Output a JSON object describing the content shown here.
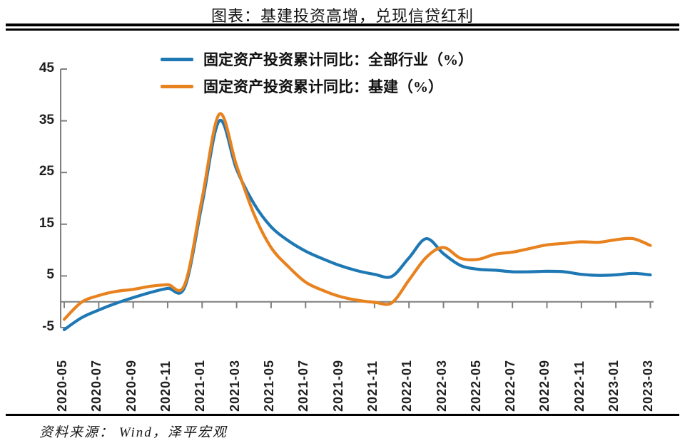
{
  "title": "图表：基建投资高增，兑现信贷红利",
  "source_note": "资料来源：  Wind，泽平宏观",
  "colors": {
    "axis": "#7f7f7f",
    "title_text": "#111111",
    "axis_label_text": "#1f1f1f",
    "series_total": "#1E78B4",
    "series_infra": "#E8821E"
  },
  "chart_data": {
    "type": "line",
    "title": "图表：基建投资高增，兑现信贷红利",
    "xlabel": "",
    "ylabel": "",
    "ylim": [
      -5,
      45
    ],
    "yticks": [
      -5,
      5,
      15,
      25,
      35,
      45
    ],
    "x_tick_every": 2,
    "grid": "zero-baseline-only",
    "legend_position": "top",
    "x": [
      "2020-05",
      "2020-06",
      "2020-07",
      "2020-08",
      "2020-09",
      "2020-10",
      "2020-11",
      "2020-12",
      "2021-01",
      "2021-02",
      "2021-03",
      "2021-04",
      "2021-05",
      "2021-06",
      "2021-07",
      "2021-08",
      "2021-09",
      "2021-10",
      "2021-11",
      "2021-12",
      "2022-01",
      "2022-02",
      "2022-03",
      "2022-04",
      "2022-05",
      "2022-06",
      "2022-07",
      "2022-08",
      "2022-09",
      "2022-10",
      "2022-11",
      "2022-12",
      "2023-01",
      "2023-02",
      "2023-03"
    ],
    "series": [
      {
        "name": "固定资产投资累计同比：全部行业（%）",
        "color": "#1E78B4",
        "values": [
          -5.4,
          -3.1,
          -1.6,
          -0.3,
          0.8,
          1.8,
          2.6,
          2.9,
          19.0,
          35.0,
          25.6,
          19.0,
          14.5,
          11.8,
          9.8,
          8.3,
          7.0,
          6.0,
          5.3,
          4.9,
          8.5,
          12.2,
          9.3,
          7.0,
          6.3,
          6.1,
          5.8,
          5.8,
          5.9,
          5.8,
          5.3,
          5.1,
          5.2,
          5.5,
          5.2
        ]
      },
      {
        "name": "固定资产投资累计同比：基建（%）",
        "color": "#E8821E",
        "values": [
          -3.4,
          -0.1,
          1.2,
          2.0,
          2.4,
          3.0,
          3.3,
          3.4,
          20.0,
          36.3,
          26.3,
          17.0,
          10.5,
          6.8,
          3.8,
          2.2,
          1.0,
          0.3,
          -0.1,
          -0.2,
          4.2,
          8.6,
          10.5,
          8.4,
          8.2,
          9.2,
          9.6,
          10.3,
          11.0,
          11.3,
          11.6,
          11.5,
          12.0,
          12.2,
          10.9
        ]
      }
    ]
  }
}
